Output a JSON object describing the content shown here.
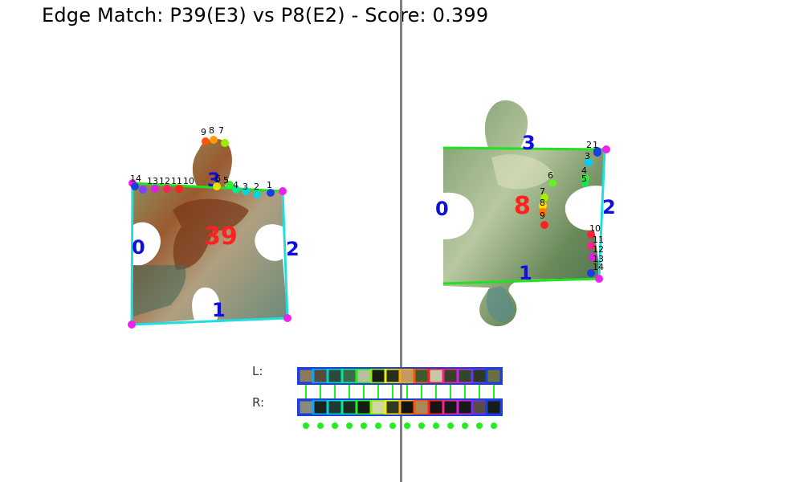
{
  "title": "Edge Match: P39(E3) vs P8(E2) - Score: 0.399",
  "colors": {
    "outline_green": "#22e022",
    "outline_cyan": "#22dddd",
    "edge_label": "#1010dd",
    "piece_label": "#ff2020",
    "corner": "#ee22ee",
    "divider": "#808080"
  },
  "left_piece": {
    "id": "39",
    "edge_labels": [
      "0",
      "1",
      "2",
      "3"
    ],
    "match_edge": "E3",
    "point_labels": [
      "1",
      "2",
      "3",
      "4",
      "5",
      "6",
      "7",
      "8",
      "9",
      "10",
      "11",
      "12",
      "13",
      "14"
    ],
    "point_colors": [
      "#1a3fdd",
      "#00d9d9",
      "#00d9d9",
      "#00e890",
      "#33ee33",
      "#e8e000",
      "#99ee00",
      "#ff9900",
      "#ff5500",
      "#ff2020",
      "#ff2060",
      "#e020e0",
      "#8040ff",
      "#1a3fdd"
    ]
  },
  "right_piece": {
    "id": "8",
    "edge_labels": [
      "0",
      "1",
      "2",
      "3"
    ],
    "match_edge": "E2",
    "point_labels": [
      "1",
      "2",
      "3",
      "4",
      "5",
      "6",
      "7",
      "8",
      "9",
      "10",
      "11",
      "12",
      "13",
      "14"
    ],
    "point_colors": [
      "#1a3fdd",
      "#1a3fdd",
      "#00ccff",
      "#33ee33",
      "#22dd55",
      "#66ee22",
      "#aaee00",
      "#ffdd00",
      "#ff7700",
      "#ff2020",
      "#ff2040",
      "#ff2090",
      "#e020e0",
      "#1a3fdd"
    ]
  },
  "comparison": {
    "left_label": "L:",
    "right_label": "R:",
    "left_swatches": [
      "#8a7a5e",
      "#5a4a3a",
      "#2c4a38",
      "#3c6a48",
      "#b6bfa0",
      "#1a1a14",
      "#2a2e1c",
      "#c09a60",
      "#3e5a30",
      "#c8c8a8",
      "#38402a",
      "#30482a",
      "#2c3a22",
      "#6a7040"
    ],
    "right_swatches": [
      "#8a8a7a",
      "#1a2418",
      "#1e3a34",
      "#1c2a20",
      "#141c14",
      "#d0d8a0",
      "#303a24",
      "#141410",
      "#a88a58",
      "#141410",
      "#161a14",
      "#161a16",
      "#5a4a48",
      "#181c16"
    ],
    "border_colors": [
      "#1a3fdd",
      "#00a8ff",
      "#00d0d0",
      "#00e8a0",
      "#22ee22",
      "#88ee00",
      "#eeee00",
      "#ffaa00",
      "#ff5500",
      "#ff2020",
      "#ff2090",
      "#dd20dd",
      "#7030ff",
      "#1a3fdd"
    ],
    "match_dot_color": "#22ee22",
    "match_count": 14
  }
}
